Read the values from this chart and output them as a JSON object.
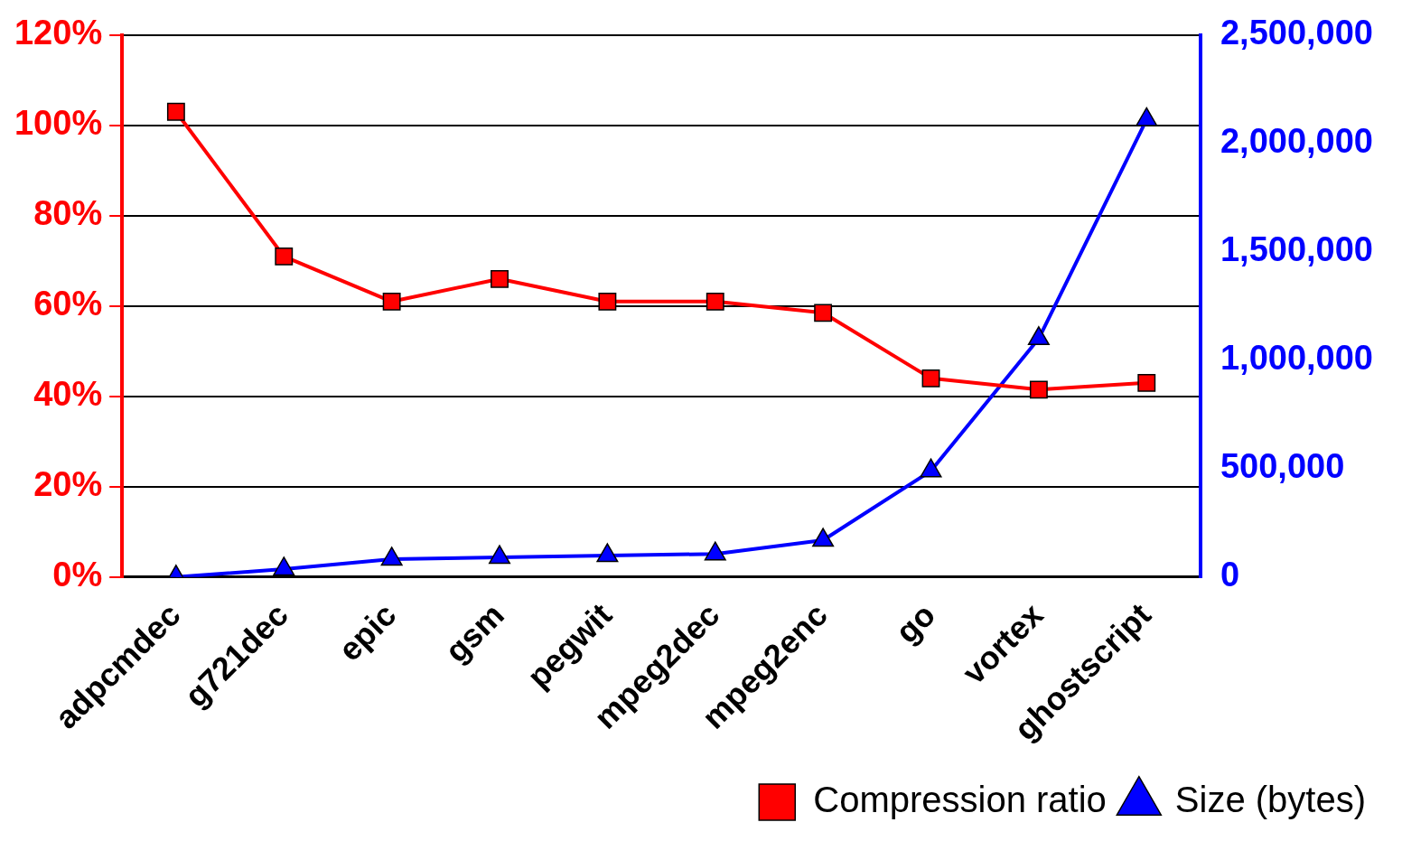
{
  "chart_data": {
    "type": "line",
    "categories": [
      "adpcmdec",
      "g721dec",
      "epic",
      "gsm",
      "pegwit",
      "mpeg2dec",
      "mpeg2enc",
      "go",
      "vortex",
      "ghostscript"
    ],
    "series": [
      {
        "name": "Compression ratio",
        "color": "#ff0000",
        "marker": "square",
        "values": [
          103,
          71,
          61,
          66,
          61,
          61,
          58.5,
          44,
          41.5,
          43
        ]
      },
      {
        "name": "Size (bytes)",
        "color": "#0000ff",
        "marker": "triangle",
        "axis": "y2",
        "values": [
          0,
          37000,
          83000,
          91000,
          99000,
          107000,
          170000,
          490000,
          1100000,
          2110000
        ]
      }
    ],
    "ylim": [
      0,
      120
    ],
    "yticks": [
      {
        "value": 0,
        "label": "0%"
      },
      {
        "value": 20,
        "label": "20%"
      },
      {
        "value": 40,
        "label": "40%"
      },
      {
        "value": 60,
        "label": "60%"
      },
      {
        "value": 80,
        "label": "80%"
      },
      {
        "value": 100,
        "label": "100%"
      },
      {
        "value": 120,
        "label": "120%"
      }
    ],
    "y2lim": [
      0,
      2500000
    ],
    "y2ticks": [
      0,
      {
        "value": 500000,
        "label": "500,000"
      },
      {
        "value": 1000000,
        "label": "1,000,000"
      },
      {
        "value": 1500000,
        "label": "1,500,000"
      },
      {
        "value": 2000000,
        "label": "2,000,000"
      },
      {
        "value": 2500000,
        "label": "2,500,000"
      }
    ],
    "grid": "y",
    "legend": "bottom right",
    "line_style": "solid"
  }
}
